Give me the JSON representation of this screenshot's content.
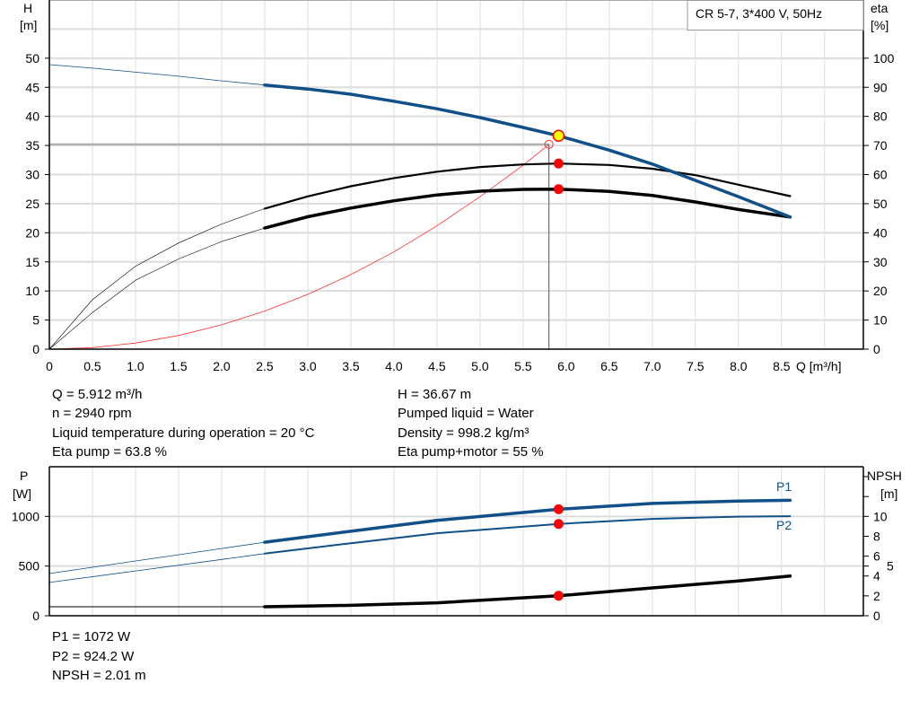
{
  "chart_data": [
    {
      "type": "line",
      "title": "CR 5-7, 3*400 V, 50Hz",
      "xlabel": "Q [m³/h]",
      "ylabel_left": [
        "H",
        "[m]"
      ],
      "ylabel_right": [
        "eta",
        "[%]"
      ],
      "xlim": [
        0,
        9.45
      ],
      "ylim_left": [
        0,
        60
      ],
      "ylim_right": [
        0,
        120
      ],
      "grid": true,
      "x_ticks": [
        "0",
        "0.5",
        "1.0",
        "1.5",
        "2.0",
        "2.5",
        "3.0",
        "3.5",
        "4.0",
        "4.5",
        "5.0",
        "5.5",
        "6.0",
        "6.5",
        "7.0",
        "7.5",
        "8.0",
        "8.5"
      ],
      "y_ticks_left": [
        "0",
        "5",
        "10",
        "15",
        "20",
        "25",
        "30",
        "35",
        "40",
        "45",
        "50"
      ],
      "y_ticks_right": [
        "0",
        "10",
        "20",
        "30",
        "40",
        "50",
        "60",
        "70",
        "80",
        "90",
        "100"
      ],
      "colors": {
        "head": "#104f87",
        "eta": "#000000",
        "system": "#ff3030",
        "duty_marker": "#ffff00",
        "marker": "#ff0000",
        "guide": "#999999"
      },
      "series": [
        {
          "key": "H",
          "axis": "left",
          "color": "#104f87",
          "points": [
            [
              0,
              48.9
            ],
            [
              0.5,
              48.3
            ],
            [
              1,
              47.6
            ],
            [
              1.5,
              46.9
            ],
            [
              2,
              46.1
            ],
            [
              2.5,
              45.4
            ],
            [
              3,
              44.7
            ],
            [
              3.5,
              43.8
            ],
            [
              4,
              42.6
            ],
            [
              4.5,
              41.3
            ],
            [
              5,
              39.8
            ],
            [
              5.5,
              38.1
            ],
            [
              5.912,
              36.67
            ],
            [
              6.5,
              34.2
            ],
            [
              7,
              31.8
            ],
            [
              7.5,
              29
            ],
            [
              8,
              26.2
            ],
            [
              8.6,
              22.7
            ]
          ]
        },
        {
          "key": "eta_pump",
          "axis": "right",
          "color": "#000000",
          "points": [
            [
              0,
              0
            ],
            [
              0.5,
              17
            ],
            [
              1,
              28.5
            ],
            [
              1.5,
              36.5
            ],
            [
              2,
              43
            ],
            [
              2.5,
              48.3
            ],
            [
              3,
              52.5
            ],
            [
              3.5,
              56
            ],
            [
              4,
              58.8
            ],
            [
              4.5,
              61
            ],
            [
              5,
              62.6
            ],
            [
              5.5,
              63.5
            ],
            [
              5.912,
              63.8
            ],
            [
              6.5,
              63.3
            ],
            [
              7,
              62
            ],
            [
              7.5,
              59.8
            ],
            [
              8,
              56.5
            ],
            [
              8.6,
              52.6
            ]
          ]
        },
        {
          "key": "eta_pump_motor",
          "axis": "right",
          "color": "#000000",
          "points": [
            [
              0,
              0
            ],
            [
              0.5,
              12.6
            ],
            [
              1,
              23.7
            ],
            [
              1.5,
              31
            ],
            [
              2,
              37
            ],
            [
              2.5,
              41.6
            ],
            [
              3,
              45.5
            ],
            [
              3.5,
              48.5
            ],
            [
              4,
              51
            ],
            [
              4.5,
              53
            ],
            [
              5,
              54.3
            ],
            [
              5.5,
              54.9
            ],
            [
              5.912,
              55
            ],
            [
              6.5,
              54.2
            ],
            [
              7,
              52.8
            ],
            [
              7.5,
              50.6
            ],
            [
              8,
              48
            ],
            [
              8.6,
              45.4
            ]
          ]
        },
        {
          "key": "system",
          "axis": "left",
          "color": "#ff3030",
          "points": [
            [
              0,
              0
            ],
            [
              0.5,
              0.26
            ],
            [
              1,
              1.05
            ],
            [
              1.5,
              2.35
            ],
            [
              2,
              4.18
            ],
            [
              2.5,
              6.54
            ],
            [
              3,
              9.41
            ],
            [
              3.5,
              12.8
            ],
            [
              4,
              16.7
            ],
            [
              4.5,
              21.2
            ],
            [
              5,
              26.2
            ],
            [
              5.5,
              31.6
            ],
            [
              5.8,
              35.2
            ]
          ]
        }
      ],
      "duty_point": {
        "Q": 5.912,
        "H": 36.67,
        "eta_pump": 63.8,
        "eta_pump_motor": 55
      },
      "required_point": {
        "Q": 5.8,
        "H": 35.2
      }
    },
    {
      "type": "line",
      "xlim": [
        0,
        9.45
      ],
      "ylabel_left": [
        "P",
        "[W]"
      ],
      "ylabel_right": [
        "NPSH",
        "[m]"
      ],
      "ylim_left": [
        0,
        1500
      ],
      "ylim_right": [
        0,
        15
      ],
      "grid": true,
      "y_ticks_left": [
        "0",
        "500",
        "1000"
      ],
      "y_ticks_right": [
        "0",
        "2",
        "4",
        "5",
        "6",
        "8",
        "10"
      ],
      "series": [
        {
          "name": "P1",
          "axis": "left",
          "color": "#104f87",
          "points": [
            [
              0,
              425
            ],
            [
              1,
              551
            ],
            [
              2,
              677
            ],
            [
              2.5,
              740
            ],
            [
              3.5,
              850
            ],
            [
              4.5,
              960
            ],
            [
              5.912,
              1072
            ],
            [
              7,
              1130
            ],
            [
              8,
              1155
            ],
            [
              8.6,
              1162
            ]
          ]
        },
        {
          "name": "P2",
          "axis": "left",
          "color": "#104f87",
          "points": [
            [
              0,
              335
            ],
            [
              1,
              451
            ],
            [
              2,
              567
            ],
            [
              2.5,
              625
            ],
            [
              3.5,
              730
            ],
            [
              4.5,
              830
            ],
            [
              5.912,
              924.2
            ],
            [
              7,
              975
            ],
            [
              8,
              998
            ],
            [
              8.6,
              1002
            ]
          ]
        },
        {
          "key": "NPSH",
          "axis": "right",
          "color": "#000000",
          "points": [
            [
              0,
              0.9
            ],
            [
              2.5,
              0.9
            ],
            [
              3.5,
              1.05
            ],
            [
              4.5,
              1.3
            ],
            [
              5.912,
              2.01
            ],
            [
              7,
              2.8
            ],
            [
              8,
              3.5
            ],
            [
              8.6,
              4.0
            ]
          ]
        }
      ],
      "duty_point": {
        "Q": 5.912,
        "P1": 1072,
        "P2": 924.2,
        "NPSH": 2.01
      }
    }
  ],
  "info_top": {
    "q": "Q = 5.912 m³/h",
    "n": "n = 2940 rpm",
    "temp": "Liquid temperature during operation = 20 °C",
    "eta_pump": "Eta pump = 63.8 %",
    "h": "H = 36.67 m",
    "liquid": "Pumped liquid = Water",
    "density": "Density = 998.2 kg/m³",
    "eta_pm": "Eta pump+motor = 55 %"
  },
  "info_bottom": {
    "p1": "P1 = 1072 W",
    "p2": "P2 = 924.2 W",
    "npsh": "NPSH = 2.01 m"
  }
}
